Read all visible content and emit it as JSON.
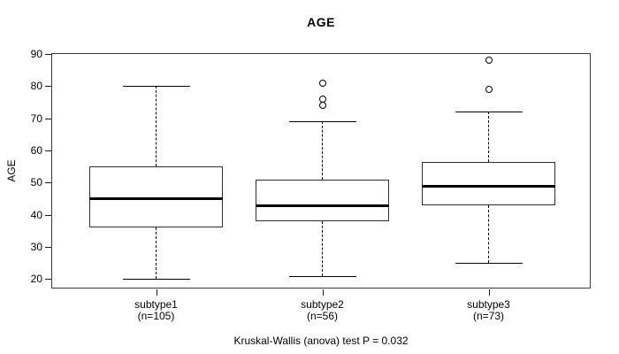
{
  "chart_data": {
    "type": "boxplot",
    "title": "AGE",
    "ylabel": "AGE",
    "xlabel": "",
    "footer": "Kruskal-Wallis (anova) test P = 0.032",
    "grid": false,
    "legend": "none",
    "ylim": [
      16.8,
      90.3
    ],
    "y_ticks": [
      20,
      30,
      40,
      50,
      60,
      70,
      80,
      90
    ],
    "groups": [
      {
        "label": "subtype1",
        "sublabel": "(n=105)",
        "n": 105,
        "whisker_low": 20,
        "q1": 36,
        "median": 45,
        "q3": 55,
        "whisker_high": 80,
        "outliers": []
      },
      {
        "label": "subtype2",
        "sublabel": "(n=56)",
        "n": 56,
        "whisker_low": 21,
        "q1": 38,
        "median": 43,
        "q3": 51,
        "whisker_high": 69,
        "outliers": [
          74,
          76,
          81
        ]
      },
      {
        "label": "subtype3",
        "sublabel": "(n=73)",
        "n": 73,
        "whisker_low": 25,
        "q1": 43,
        "median": 49,
        "q3": 56.5,
        "whisker_high": 72,
        "outliers": [
          79,
          88
        ]
      }
    ]
  },
  "colors": {
    "line": "#000000",
    "frame": "#3c3c3c",
    "background": "#ffffff"
  }
}
